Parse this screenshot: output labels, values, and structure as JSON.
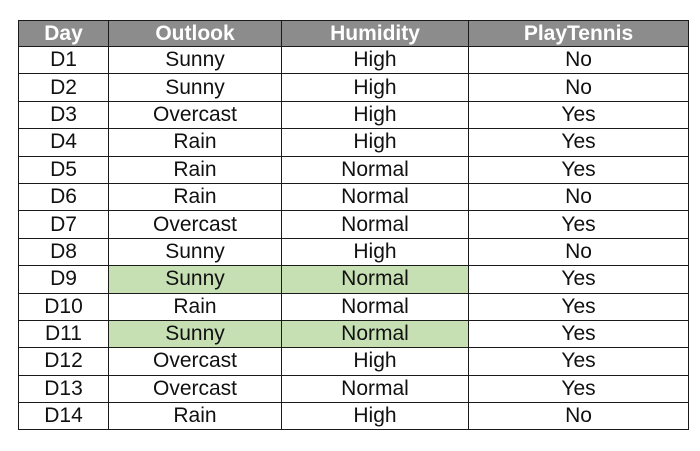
{
  "table": {
    "headers": [
      "Day",
      "Outlook",
      "Humidity",
      "PlayTennis"
    ],
    "highlight_color": "#c6e0b4",
    "header_color": "#8c8c8c",
    "rows": [
      {
        "day": "D1",
        "outlook": "Sunny",
        "humidity": "High",
        "play": "No",
        "highlighted": false
      },
      {
        "day": "D2",
        "outlook": "Sunny",
        "humidity": "High",
        "play": "No",
        "highlighted": false
      },
      {
        "day": "D3",
        "outlook": "Overcast",
        "humidity": "High",
        "play": "Yes",
        "highlighted": false
      },
      {
        "day": "D4",
        "outlook": "Rain",
        "humidity": "High",
        "play": "Yes",
        "highlighted": false
      },
      {
        "day": "D5",
        "outlook": "Rain",
        "humidity": "Normal",
        "play": "Yes",
        "highlighted": false
      },
      {
        "day": "D6",
        "outlook": "Rain",
        "humidity": "Normal",
        "play": "No",
        "highlighted": false
      },
      {
        "day": "D7",
        "outlook": "Overcast",
        "humidity": "Normal",
        "play": "Yes",
        "highlighted": false
      },
      {
        "day": "D8",
        "outlook": "Sunny",
        "humidity": "High",
        "play": "No",
        "highlighted": false
      },
      {
        "day": "D9",
        "outlook": "Sunny",
        "humidity": "Normal",
        "play": "Yes",
        "highlighted": true
      },
      {
        "day": "D10",
        "outlook": "Rain",
        "humidity": "Normal",
        "play": "Yes",
        "highlighted": false
      },
      {
        "day": "D11",
        "outlook": "Sunny",
        "humidity": "Normal",
        "play": "Yes",
        "highlighted": true
      },
      {
        "day": "D12",
        "outlook": "Overcast",
        "humidity": "High",
        "play": "Yes",
        "highlighted": false
      },
      {
        "day": "D13",
        "outlook": "Overcast",
        "humidity": "Normal",
        "play": "Yes",
        "highlighted": false
      },
      {
        "day": "D14",
        "outlook": "Rain",
        "humidity": "High",
        "play": "No",
        "highlighted": false
      }
    ]
  }
}
